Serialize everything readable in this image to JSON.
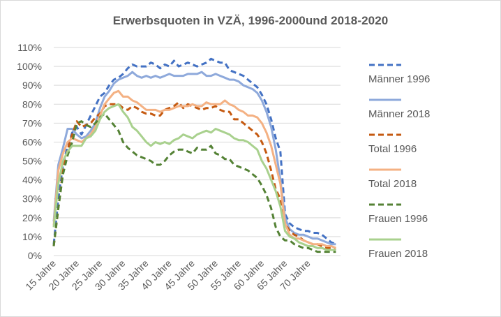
{
  "chart_data": {
    "type": "line",
    "title": "Erwerbsquoten in VZÄ, 1996-2000und 2018-2020",
    "xlabel": "",
    "ylabel": "",
    "ylim": [
      0,
      110
    ],
    "xlim": [
      15,
      77
    ],
    "y_ticks": [
      0,
      10,
      20,
      30,
      40,
      50,
      60,
      70,
      80,
      90,
      100,
      110
    ],
    "y_tick_labels": [
      "0%",
      "10%",
      "20%",
      "30%",
      "40%",
      "50%",
      "60%",
      "70%",
      "80%",
      "90%",
      "100%",
      "110%"
    ],
    "x_ticks": [
      15,
      20,
      25,
      30,
      35,
      40,
      45,
      50,
      55,
      60,
      65,
      70
    ],
    "x_tick_labels": [
      "15 Jahre",
      "20 Jahre",
      "25 Jahre",
      "30 Jahre",
      "35 Jahre",
      "40 Jahre",
      "45 Jahre",
      "50 Jahre",
      "55 Jahre",
      "60 Jahre",
      "65 Jahre",
      "70 Jahre"
    ],
    "grid": true,
    "legend": "right",
    "series": [
      {
        "name": "Männer 1996",
        "color": "#4472C4",
        "dash": true,
        "x": [
          15,
          16,
          17,
          18,
          19,
          20,
          21,
          22,
          23,
          24,
          25,
          26,
          27,
          28,
          29,
          30,
          31,
          32,
          33,
          34,
          35,
          36,
          37,
          38,
          39,
          40,
          41,
          42,
          43,
          44,
          45,
          46,
          47,
          48,
          49,
          50,
          51,
          52,
          53,
          54,
          55,
          56,
          57,
          58,
          59,
          60,
          61,
          62,
          63,
          64,
          65,
          66,
          67,
          68,
          69,
          70,
          71,
          72,
          73,
          74,
          75,
          76
        ],
        "y": [
          6,
          30,
          48,
          58,
          65,
          68,
          64,
          69,
          74,
          79,
          84,
          86,
          90,
          93,
          94,
          96,
          99,
          101,
          100,
          100,
          100,
          102,
          101,
          99,
          101,
          100,
          103,
          100,
          101,
          102,
          101,
          100,
          101,
          102,
          104,
          103,
          102,
          102,
          98,
          97,
          96,
          95,
          93,
          91,
          89,
          85,
          80,
          72,
          62,
          55,
          22,
          17,
          15,
          14,
          13,
          13,
          12,
          12,
          11,
          9,
          7,
          6
        ]
      },
      {
        "name": "Männer 2018",
        "color": "#8EA9DB",
        "dash": false,
        "x": [
          15,
          16,
          17,
          18,
          19,
          20,
          21,
          22,
          23,
          24,
          25,
          26,
          27,
          28,
          29,
          30,
          31,
          32,
          33,
          34,
          35,
          36,
          37,
          38,
          39,
          40,
          41,
          42,
          43,
          44,
          45,
          46,
          47,
          48,
          49,
          50,
          51,
          52,
          53,
          54,
          55,
          56,
          57,
          58,
          59,
          60,
          61,
          62,
          63,
          64,
          65,
          66,
          67,
          68,
          69,
          70,
          71,
          72,
          73,
          74,
          75,
          76
        ],
        "y": [
          18,
          48,
          57,
          67,
          67,
          64,
          62,
          63,
          66,
          70,
          78,
          84,
          87,
          91,
          93,
          94,
          95,
          97,
          95,
          94,
          95,
          94,
          95,
          94,
          95,
          96,
          95,
          95,
          95,
          96,
          96,
          96,
          97,
          95,
          95,
          96,
          95,
          94,
          93,
          93,
          92,
          90,
          89,
          88,
          86,
          82,
          76,
          68,
          56,
          40,
          20,
          14,
          12,
          11,
          11,
          10,
          9,
          9,
          8,
          7,
          6,
          6
        ]
      },
      {
        "name": "Total 1996",
        "color": "#C55A11",
        "dash": true,
        "x": [
          15,
          16,
          17,
          18,
          19,
          20,
          21,
          22,
          23,
          24,
          25,
          26,
          27,
          28,
          29,
          30,
          31,
          32,
          33,
          34,
          35,
          36,
          37,
          38,
          39,
          40,
          41,
          42,
          43,
          44,
          45,
          46,
          47,
          48,
          49,
          50,
          51,
          52,
          53,
          54,
          55,
          56,
          57,
          58,
          59,
          60,
          61,
          62,
          63,
          64,
          65,
          66,
          67,
          68,
          69,
          70,
          71,
          72,
          73,
          74,
          75,
          76
        ],
        "y": [
          5,
          25,
          45,
          56,
          64,
          71,
          68,
          69,
          70,
          73,
          75,
          79,
          80,
          80,
          80,
          78,
          77,
          79,
          78,
          76,
          75,
          75,
          74,
          74,
          77,
          78,
          79,
          81,
          78,
          80,
          79,
          78,
          77,
          78,
          78,
          79,
          77,
          76,
          76,
          72,
          72,
          70,
          68,
          66,
          64,
          60,
          54,
          45,
          35,
          30,
          17,
          13,
          11,
          10,
          8,
          7,
          6,
          6,
          5,
          4,
          4,
          3
        ]
      },
      {
        "name": "Total 2018",
        "color": "#F4B183",
        "dash": false,
        "x": [
          15,
          16,
          17,
          18,
          19,
          20,
          21,
          22,
          23,
          24,
          25,
          26,
          27,
          28,
          29,
          30,
          31,
          32,
          33,
          34,
          35,
          36,
          37,
          38,
          39,
          40,
          41,
          42,
          43,
          44,
          45,
          46,
          47,
          48,
          49,
          50,
          51,
          52,
          53,
          54,
          55,
          56,
          57,
          58,
          59,
          60,
          61,
          62,
          63,
          64,
          65,
          66,
          67,
          68,
          69,
          70,
          71,
          72,
          73,
          74,
          75,
          76
        ],
        "y": [
          16,
          45,
          54,
          60,
          62,
          61,
          60,
          62,
          64,
          68,
          74,
          80,
          83,
          86,
          87,
          84,
          84,
          82,
          81,
          79,
          77,
          77,
          77,
          76,
          77,
          77,
          78,
          79,
          79,
          79,
          80,
          79,
          79,
          81,
          80,
          80,
          80,
          82,
          80,
          79,
          77,
          76,
          74,
          74,
          73,
          70,
          65,
          58,
          48,
          38,
          17,
          11,
          9,
          9,
          8,
          7,
          6,
          6,
          6,
          5,
          5,
          4
        ]
      },
      {
        "name": "Frauen 1996",
        "color": "#548235",
        "dash": true,
        "x": [
          15,
          16,
          17,
          18,
          19,
          20,
          21,
          22,
          23,
          24,
          25,
          26,
          27,
          28,
          29,
          30,
          31,
          32,
          33,
          34,
          35,
          36,
          37,
          38,
          39,
          40,
          41,
          42,
          43,
          44,
          45,
          46,
          47,
          48,
          49,
          50,
          51,
          52,
          53,
          54,
          55,
          56,
          57,
          58,
          59,
          60,
          61,
          62,
          63,
          64,
          65,
          66,
          67,
          68,
          69,
          70,
          71,
          72,
          73,
          74,
          75,
          76
        ],
        "y": [
          5,
          25,
          43,
          53,
          60,
          70,
          71,
          69,
          68,
          70,
          73,
          75,
          72,
          69,
          66,
          60,
          57,
          55,
          53,
          52,
          51,
          50,
          48,
          48,
          50,
          53,
          55,
          56,
          56,
          55,
          54,
          57,
          56,
          56,
          58,
          54,
          53,
          51,
          51,
          48,
          47,
          46,
          45,
          43,
          41,
          37,
          32,
          25,
          15,
          10,
          8,
          8,
          6,
          5,
          4,
          4,
          3,
          2,
          2,
          2,
          2,
          2
        ]
      },
      {
        "name": "Frauen 2018",
        "color": "#A9D18E",
        "dash": false,
        "x": [
          15,
          16,
          17,
          18,
          19,
          20,
          21,
          22,
          23,
          24,
          25,
          26,
          27,
          28,
          29,
          30,
          31,
          32,
          33,
          34,
          35,
          36,
          37,
          38,
          39,
          40,
          41,
          42,
          43,
          44,
          45,
          46,
          47,
          48,
          49,
          50,
          51,
          52,
          53,
          54,
          55,
          56,
          57,
          58,
          59,
          60,
          61,
          62,
          63,
          64,
          65,
          66,
          67,
          68,
          69,
          70,
          71,
          72,
          73,
          74,
          75,
          76
        ],
        "y": [
          15,
          38,
          50,
          55,
          58,
          58,
          58,
          62,
          63,
          66,
          72,
          76,
          78,
          79,
          80,
          76,
          73,
          68,
          66,
          63,
          60,
          58,
          60,
          59,
          60,
          59,
          61,
          62,
          64,
          63,
          62,
          64,
          65,
          66,
          65,
          67,
          66,
          65,
          64,
          62,
          61,
          61,
          60,
          58,
          56,
          50,
          46,
          40,
          34,
          26,
          13,
          10,
          9,
          7,
          6,
          5,
          5,
          4,
          4,
          3,
          3,
          3
        ]
      }
    ]
  }
}
